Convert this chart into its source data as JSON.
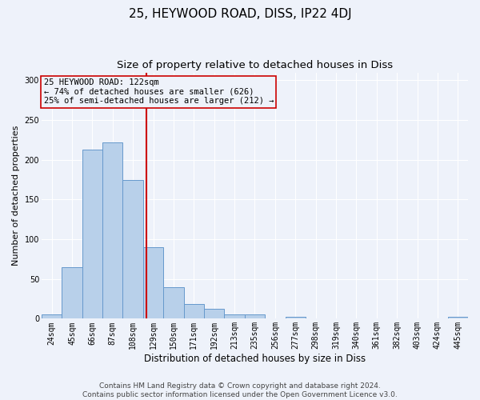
{
  "title1": "25, HEYWOOD ROAD, DISS, IP22 4DJ",
  "title2": "Size of property relative to detached houses in Diss",
  "xlabel": "Distribution of detached houses by size in Diss",
  "ylabel": "Number of detached properties",
  "bin_labels": [
    "24sqm",
    "45sqm",
    "66sqm",
    "87sqm",
    "108sqm",
    "129sqm",
    "150sqm",
    "171sqm",
    "192sqm",
    "213sqm",
    "235sqm",
    "256sqm",
    "277sqm",
    "298sqm",
    "319sqm",
    "340sqm",
    "361sqm",
    "382sqm",
    "403sqm",
    "424sqm",
    "445sqm"
  ],
  "bar_heights": [
    5,
    65,
    213,
    222,
    175,
    90,
    40,
    19,
    13,
    5,
    5,
    0,
    2,
    0,
    0,
    0,
    0,
    0,
    0,
    0,
    2
  ],
  "bar_color": "#b8d0ea",
  "bar_edge_color": "#6699cc",
  "vline_color": "#cc0000",
  "annotation_text": "25 HEYWOOD ROAD: 122sqm\n← 74% of detached houses are smaller (626)\n25% of semi-detached houses are larger (212) →",
  "annotation_box_color": "#cc0000",
  "ylim": [
    0,
    310
  ],
  "yticks": [
    0,
    50,
    100,
    150,
    200,
    250,
    300
  ],
  "footer": "Contains HM Land Registry data © Crown copyright and database right 2024.\nContains public sector information licensed under the Open Government Licence v3.0.",
  "bg_color": "#eef2fa",
  "grid_color": "#ffffff",
  "title1_fontsize": 11,
  "title2_fontsize": 9.5,
  "xlabel_fontsize": 8.5,
  "ylabel_fontsize": 8,
  "tick_fontsize": 7,
  "annotation_fontsize": 7.5,
  "footer_fontsize": 6.5
}
